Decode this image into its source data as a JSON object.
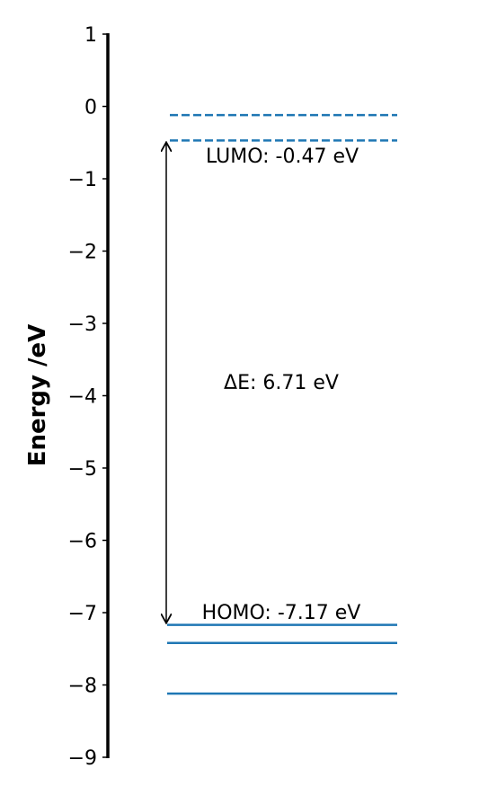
{
  "chart_data": {
    "type": "energy-level-diagram",
    "ylabel": "Energy /eV",
    "ylim": [
      -9,
      1
    ],
    "yticks": [
      1,
      0,
      -1,
      -2,
      -3,
      -4,
      -5,
      -6,
      -7,
      -8,
      -9
    ],
    "ytick_labels": [
      "1",
      "0",
      "−1",
      "−2",
      "−3",
      "−4",
      "−5",
      "−6",
      "−7",
      "−8",
      "−9"
    ],
    "line_color": "#1f77b4",
    "occupied_levels": [
      -7.17,
      -7.42,
      -8.12
    ],
    "unoccupied_levels": [
      -0.47,
      -0.12
    ],
    "homo": -7.17,
    "lumo": -0.47,
    "gap": 6.71,
    "annotations": {
      "lumo_label": "LUMO: -0.47 eV",
      "homo_label": "HOMO: -7.17 eV",
      "gap_label": "ΔE: 6.71 eV"
    }
  }
}
